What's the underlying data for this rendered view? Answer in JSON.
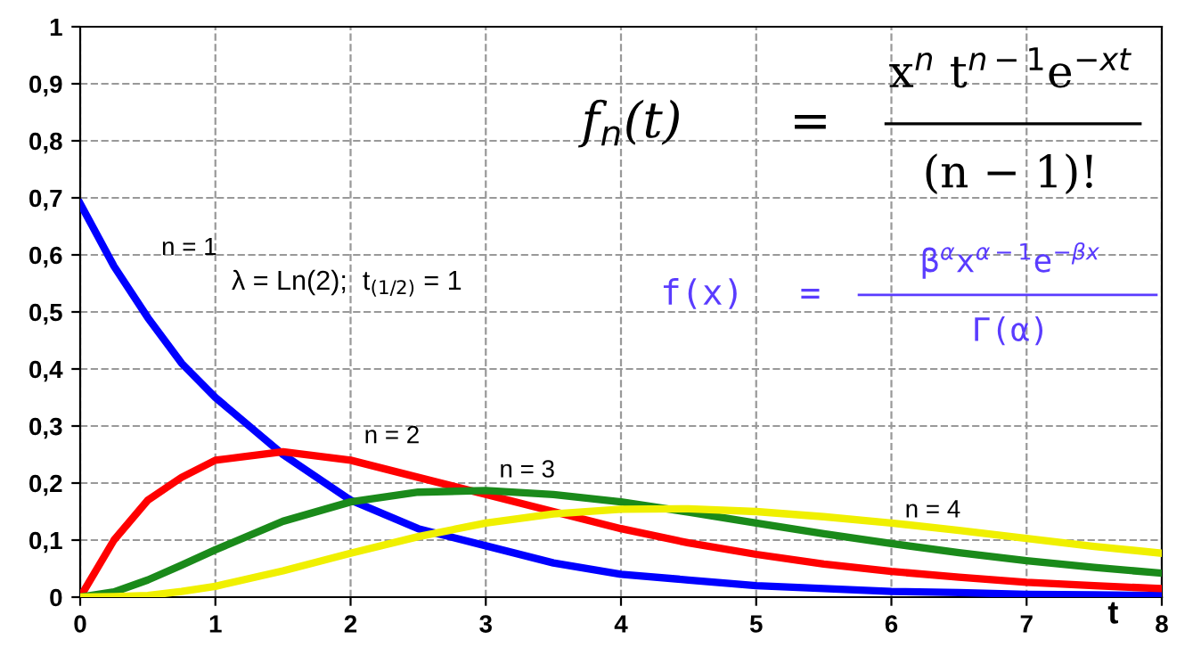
{
  "chart_data": {
    "type": "line",
    "xlabel": "t",
    "x": [
      0,
      0.25,
      0.5,
      0.75,
      1,
      1.5,
      2,
      2.5,
      3,
      3.5,
      4,
      4.5,
      5,
      5.5,
      6,
      6.5,
      7,
      7.5,
      8
    ],
    "series": [
      {
        "name": "n = 1",
        "color": "#0000ff",
        "values": [
          0.69,
          0.58,
          0.49,
          0.41,
          0.35,
          0.25,
          0.17,
          0.12,
          0.09,
          0.06,
          0.04,
          0.03,
          0.02,
          0.015,
          0.01,
          0.008,
          0.005,
          0.004,
          0.003
        ]
      },
      {
        "name": "n = 2",
        "color": "#ff0000",
        "values": [
          0,
          0.1,
          0.17,
          0.21,
          0.24,
          0.255,
          0.24,
          0.21,
          0.18,
          0.15,
          0.12,
          0.095,
          0.075,
          0.058,
          0.045,
          0.035,
          0.026,
          0.02,
          0.015
        ]
      },
      {
        "name": "n = 3",
        "color": "#1a8a1a",
        "values": [
          0,
          0.009,
          0.03,
          0.056,
          0.083,
          0.133,
          0.167,
          0.184,
          0.187,
          0.18,
          0.167,
          0.149,
          0.13,
          0.111,
          0.094,
          0.078,
          0.064,
          0.052,
          0.042
        ]
      },
      {
        "name": "n = 4",
        "color": "#f0f000",
        "values": [
          0,
          0.001,
          0.003,
          0.01,
          0.019,
          0.046,
          0.077,
          0.106,
          0.13,
          0.146,
          0.154,
          0.155,
          0.15,
          0.141,
          0.13,
          0.117,
          0.103,
          0.089,
          0.077
        ]
      }
    ],
    "xlim": [
      0,
      8
    ],
    "ylim": [
      0,
      1
    ],
    "xticks": [
      0,
      1,
      2,
      3,
      4,
      5,
      6,
      7,
      8
    ],
    "yticks": [
      0,
      {
        "value": 0.1,
        "label": "0,1"
      },
      {
        "value": 0.2,
        "label": "0,2"
      },
      {
        "value": 0.3,
        "label": "0,3"
      },
      {
        "value": 0.4,
        "label": "0,4"
      },
      {
        "value": 0.5,
        "label": "0,5"
      },
      {
        "value": 0.6,
        "label": "0,6"
      },
      {
        "value": 0.7,
        "label": "0,7"
      },
      {
        "value": 0.8,
        "label": "0,8"
      },
      {
        "value": 0.9,
        "label": "0,9"
      },
      1
    ],
    "grid": true,
    "legend": false,
    "marker": "none",
    "line_style": "solid",
    "annotations": [
      "f$_{n}$(t)",
      "=",
      "x$^{n}$ t$^{n−1}$e$^{−xt}$",
      "(n − 1)!",
      "λ = Ln(2);  t$_{(1/2)}$ = 1",
      "f(x)",
      "=",
      "β$^{α}$x$^{α−1}$e$^{−βx}$",
      "Γ(α)"
    ]
  }
}
